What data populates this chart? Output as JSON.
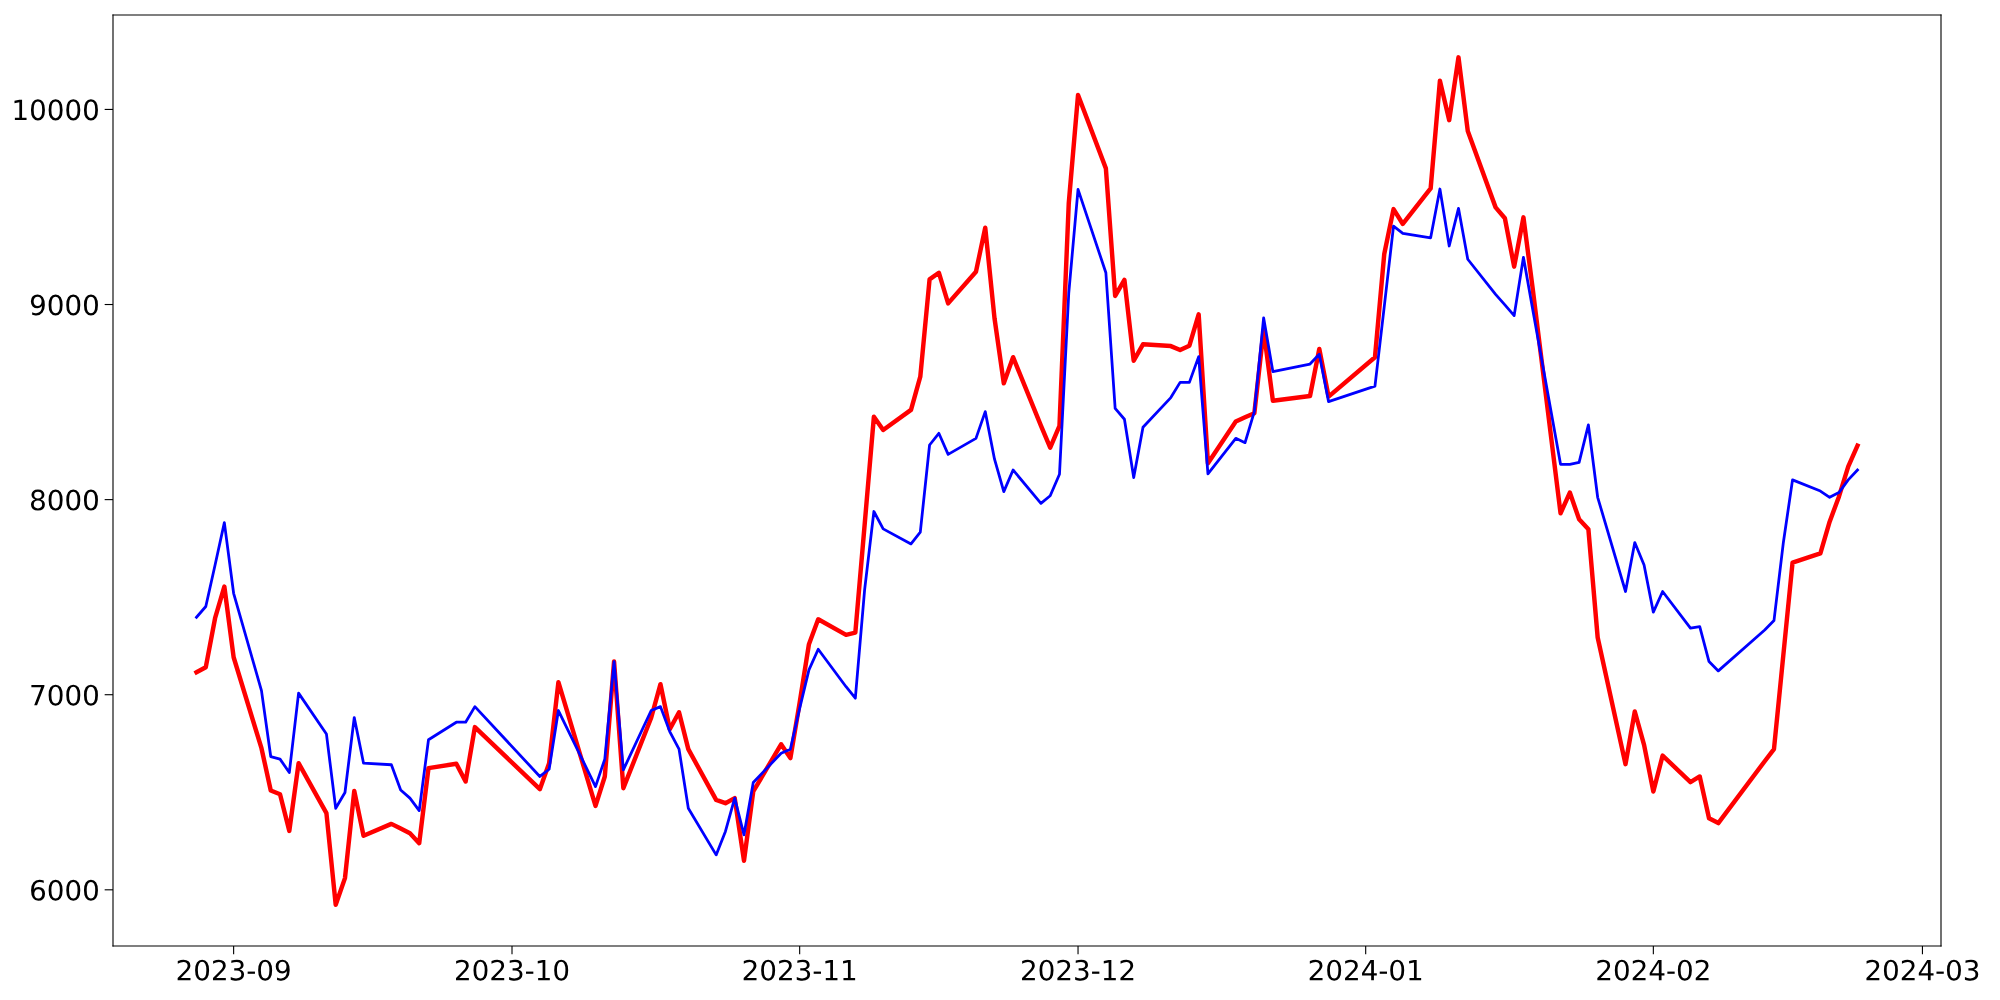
{
  "chart_data": {
    "type": "line",
    "x": [
      "2023-08-28",
      "2023-08-29",
      "2023-08-30",
      "2023-08-31",
      "2023-09-01",
      "2023-09-04",
      "2023-09-05",
      "2023-09-06",
      "2023-09-07",
      "2023-09-08",
      "2023-09-11",
      "2023-09-12",
      "2023-09-13",
      "2023-09-14",
      "2023-09-15",
      "2023-09-18",
      "2023-09-19",
      "2023-09-20",
      "2023-09-21",
      "2023-09-22",
      "2023-09-25",
      "2023-09-26",
      "2023-09-27",
      "2023-10-04",
      "2023-10-05",
      "2023-10-06",
      "2023-10-10",
      "2023-10-11",
      "2023-10-12",
      "2023-10-13",
      "2023-10-16",
      "2023-10-17",
      "2023-10-18",
      "2023-10-19",
      "2023-10-20",
      "2023-10-23",
      "2023-10-24",
      "2023-10-25",
      "2023-10-26",
      "2023-10-27",
      "2023-10-30",
      "2023-10-31",
      "2023-11-01",
      "2023-11-02",
      "2023-11-03",
      "2023-11-06",
      "2023-11-07",
      "2023-11-08",
      "2023-11-09",
      "2023-11-10",
      "2023-11-13",
      "2023-11-14",
      "2023-11-15",
      "2023-11-16",
      "2023-11-17",
      "2023-11-20",
      "2023-11-21",
      "2023-11-22",
      "2023-11-23",
      "2023-11-24",
      "2023-11-27",
      "2023-11-28",
      "2023-11-29",
      "2023-11-30",
      "2023-12-01",
      "2023-12-04",
      "2023-12-05",
      "2023-12-06",
      "2023-12-07",
      "2023-12-08",
      "2023-12-11",
      "2023-12-12",
      "2023-12-13",
      "2023-12-14",
      "2023-12-15",
      "2023-12-18",
      "2023-12-19",
      "2023-12-20",
      "2023-12-21",
      "2023-12-22",
      "2023-12-26",
      "2023-12-27",
      "2023-12-28",
      "2024-01-02",
      "2024-01-03",
      "2024-01-04",
      "2024-01-05",
      "2024-01-08",
      "2024-01-09",
      "2024-01-10",
      "2024-01-11",
      "2024-01-12",
      "2024-01-15",
      "2024-01-16",
      "2024-01-17",
      "2024-01-18",
      "2024-01-19",
      "2024-01-22",
      "2024-01-23",
      "2024-01-24",
      "2024-01-25",
      "2024-01-26",
      "2024-01-29",
      "2024-01-30",
      "2024-01-31",
      "2024-02-01",
      "2024-02-02",
      "2024-02-05",
      "2024-02-06",
      "2024-02-07",
      "2024-02-08",
      "2024-02-13",
      "2024-02-14",
      "2024-02-15",
      "2024-02-16",
      "2024-02-19",
      "2024-02-20",
      "2024-02-21",
      "2024-02-22",
      "2024-02-23"
    ],
    "series": [
      {
        "color": "#ff0000",
        "values": [
          7115,
          7141,
          7392,
          7554,
          7192,
          6726,
          6509,
          6490,
          6302,
          6649,
          6393,
          5923,
          6060,
          6507,
          6277,
          6338,
          6314,
          6290,
          6239,
          6624,
          6646,
          6555,
          6834,
          6516,
          6649,
          7064,
          6430,
          6581,
          7170,
          6521,
          6882,
          7054,
          6823,
          6910,
          6721,
          6461,
          6444,
          6470,
          6149,
          6504,
          6746,
          6675,
          6960,
          7259,
          7387,
          7307,
          7318,
          7870,
          8425,
          8357,
          8460,
          8630,
          9129,
          9163,
          9006,
          9168,
          9394,
          8929,
          8596,
          8730,
          8379,
          8266,
          8378,
          9519,
          10074,
          9698,
          9044,
          9126,
          8712,
          8796,
          8787,
          8767,
          8789,
          8950,
          8186,
          8400,
          8422,
          8443,
          8869,
          8507,
          8531,
          8772,
          8528,
          8730,
          9259,
          9489,
          9413,
          9595,
          10147,
          9945,
          10267,
          9889,
          9498,
          9442,
          9194,
          9447,
          9081,
          7930,
          8036,
          7899,
          7848,
          7293,
          6644,
          6914,
          6743,
          6504,
          6688,
          6552,
          6581,
          6367,
          6342,
          6659,
          6721,
          7199,
          7677,
          7725,
          7887,
          8015,
          8169,
          8277
        ]
      },
      {
        "color": "#0000ff",
        "values": [
          7397,
          7452,
          7665,
          7882,
          7520,
          7021,
          6683,
          6670,
          6601,
          7008,
          6799,
          6418,
          6499,
          6883,
          6649,
          6641,
          6512,
          6470,
          6406,
          6769,
          6859,
          6859,
          6939,
          6581,
          6618,
          6919,
          6529,
          6670,
          7170,
          6615,
          6919,
          6939,
          6811,
          6721,
          6418,
          6179,
          6299,
          6470,
          6282,
          6550,
          6700,
          6721,
          6930,
          7127,
          7233,
          7041,
          6982,
          7537,
          7939,
          7850,
          7773,
          7833,
          8280,
          8340,
          8232,
          8314,
          8451,
          8207,
          8041,
          8152,
          7981,
          8020,
          8130,
          9058,
          9590,
          9163,
          8468,
          8412,
          8113,
          8371,
          8523,
          8601,
          8601,
          8733,
          8132,
          8314,
          8292,
          8451,
          8932,
          8656,
          8695,
          8745,
          8502,
          8582,
          8989,
          9402,
          9365,
          9342,
          9592,
          9300,
          9493,
          9232,
          9052,
          8998,
          8943,
          9242,
          8974,
          8181,
          8181,
          8191,
          8383,
          8012,
          7529,
          7780,
          7665,
          7423,
          7529,
          7341,
          7349,
          7170,
          7122,
          7332,
          7380,
          7776,
          8101,
          8044,
          8012,
          8036,
          8101,
          8152
        ]
      }
    ],
    "xlim": [
      "2023-08-19",
      "2024-03-03"
    ],
    "xticks": [
      {
        "value": "2023-09-01",
        "label": "2023-09"
      },
      {
        "value": "2023-10-01",
        "label": "2023-10"
      },
      {
        "value": "2023-11-01",
        "label": "2023-11"
      },
      {
        "value": "2023-12-01",
        "label": "2023-12"
      },
      {
        "value": "2024-01-01",
        "label": "2024-01"
      },
      {
        "value": "2024-02-01",
        "label": "2024-02"
      },
      {
        "value": "2024-03-01",
        "label": "2024-03"
      }
    ],
    "ylim": [
      5712,
      10484
    ],
    "yticks": [
      6000,
      7000,
      8000,
      9000,
      10000
    ],
    "grid": false,
    "legend": false,
    "line_style": "solid"
  }
}
